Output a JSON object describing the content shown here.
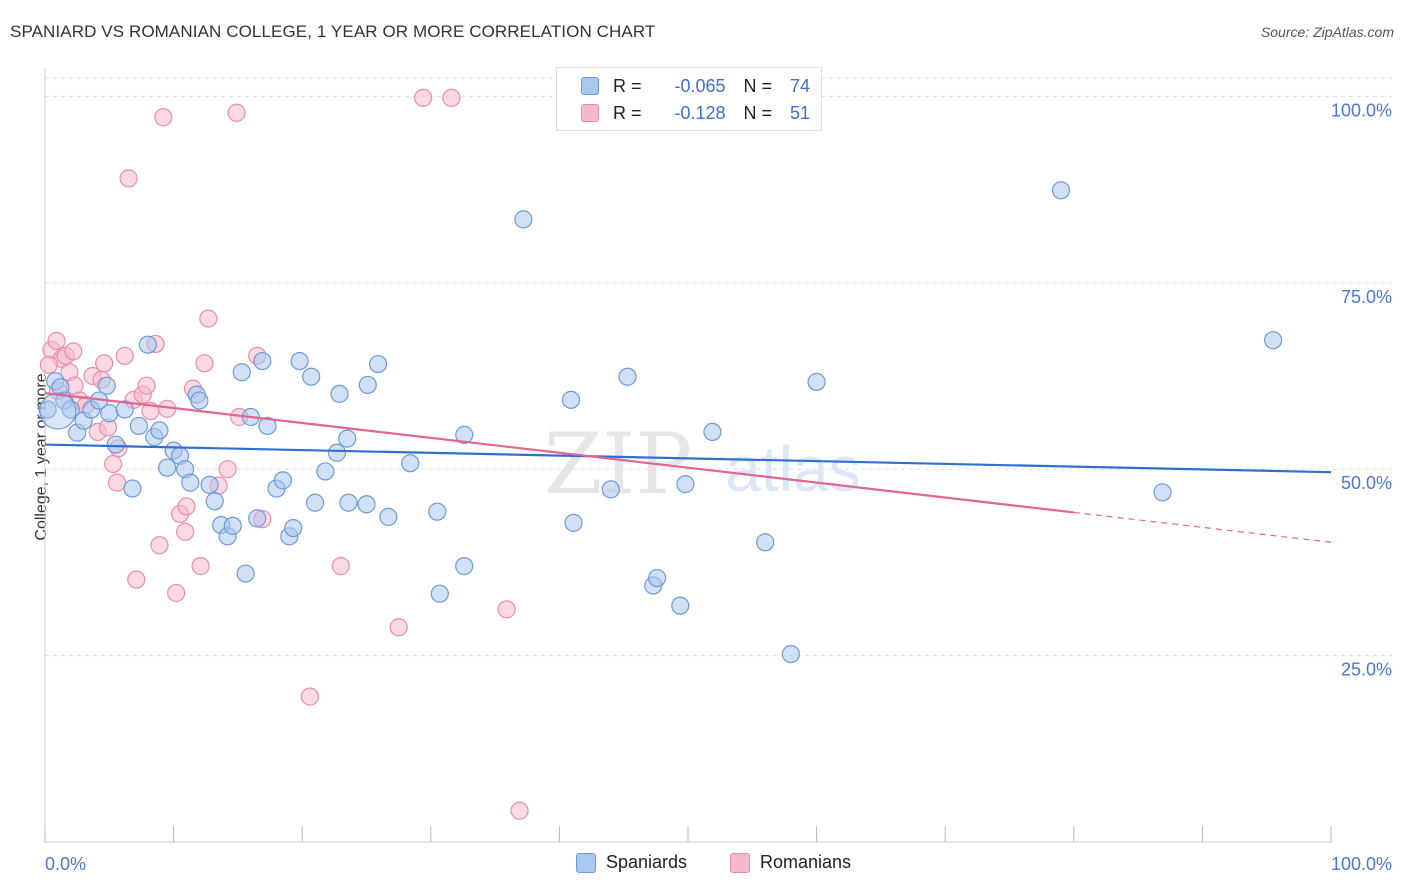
{
  "title": "SPANIARD VS ROMANIAN COLLEGE, 1 YEAR OR MORE CORRELATION CHART",
  "source": "Source: ZipAtlas.com",
  "watermark": {
    "zip": "ZIP",
    "atlas": "atlas"
  },
  "legend_top": {
    "r_label": "R =",
    "n_label": "N =",
    "rows": [
      {
        "r": "-0.065",
        "n": "74"
      },
      {
        "r": "-0.128",
        "n": "51"
      }
    ]
  },
  "chart_data": {
    "type": "scatter",
    "title": "SPANIARD VS ROMANIAN COLLEGE, 1 YEAR OR MORE CORRELATION CHART",
    "xlabel": "",
    "ylabel": "College, 1 year or more",
    "xlim": [
      0,
      100
    ],
    "ylim": [
      0,
      103
    ],
    "x_tick_labels": [
      "0.0%",
      "100.0%"
    ],
    "y_ticks": [
      25,
      50,
      75,
      100
    ],
    "y_tick_labels": [
      "25.0%",
      "50.0%",
      "75.0%",
      "100.0%"
    ],
    "grid": true,
    "legend_position": "bottom-center",
    "colors": {
      "spaniards_fill": "#aac8ef",
      "spaniards_stroke": "#6f9ad8",
      "spaniards_line": "#2f6fd0",
      "romanians_fill": "#f6b9cc",
      "romanians_stroke": "#ea8eab",
      "romanians_line": "#e26593",
      "grid": "#dddddd",
      "tick_label": "#4a78d2"
    },
    "series": [
      {
        "name": "Spaniards",
        "r": -0.065,
        "n": 74,
        "trend": {
          "x": [
            0,
            100
          ],
          "y": [
            53.3,
            49.6
          ]
        },
        "points": [
          [
            0.2,
            58.0
          ],
          [
            0.8,
            61.8
          ],
          [
            1.2,
            61.0
          ],
          [
            1.5,
            59.2
          ],
          [
            2.0,
            58.0
          ],
          [
            2.5,
            54.9
          ],
          [
            3.0,
            56.5
          ],
          [
            3.6,
            58.0
          ],
          [
            4.2,
            59.2
          ],
          [
            4.8,
            61.2
          ],
          [
            5.0,
            57.5
          ],
          [
            5.5,
            53.3
          ],
          [
            6.2,
            58.0
          ],
          [
            6.8,
            47.4
          ],
          [
            7.3,
            55.8
          ],
          [
            8.0,
            66.7
          ],
          [
            8.5,
            54.3
          ],
          [
            8.9,
            55.2
          ],
          [
            9.5,
            50.2
          ],
          [
            10.0,
            52.5
          ],
          [
            10.5,
            51.8
          ],
          [
            10.9,
            50.0
          ],
          [
            11.3,
            48.2
          ],
          [
            11.8,
            60.0
          ],
          [
            12.0,
            59.2
          ],
          [
            12.8,
            47.9
          ],
          [
            13.2,
            45.7
          ],
          [
            13.7,
            42.5
          ],
          [
            14.2,
            41.0
          ],
          [
            14.6,
            42.4
          ],
          [
            15.3,
            63.0
          ],
          [
            15.6,
            36.0
          ],
          [
            16.0,
            57.0
          ],
          [
            16.5,
            43.4
          ],
          [
            16.9,
            64.5
          ],
          [
            17.3,
            55.8
          ],
          [
            18.0,
            47.4
          ],
          [
            18.5,
            48.5
          ],
          [
            19.0,
            41.0
          ],
          [
            19.3,
            42.1
          ],
          [
            19.8,
            64.5
          ],
          [
            20.7,
            62.4
          ],
          [
            21.0,
            45.5
          ],
          [
            21.8,
            49.7
          ],
          [
            22.7,
            52.2
          ],
          [
            22.9,
            60.1
          ],
          [
            23.5,
            54.1
          ],
          [
            23.6,
            45.5
          ],
          [
            25.0,
            45.3
          ],
          [
            25.1,
            61.3
          ],
          [
            25.9,
            64.1
          ],
          [
            26.7,
            43.6
          ],
          [
            28.4,
            50.8
          ],
          [
            30.5,
            44.3
          ],
          [
            30.7,
            33.3
          ],
          [
            32.6,
            54.6
          ],
          [
            32.6,
            37.0
          ],
          [
            37.2,
            83.5
          ],
          [
            40.9,
            59.3
          ],
          [
            41.1,
            42.8
          ],
          [
            44.0,
            47.3
          ],
          [
            45.3,
            62.4
          ],
          [
            47.3,
            34.4
          ],
          [
            47.6,
            35.4
          ],
          [
            49.4,
            31.7
          ],
          [
            49.8,
            48.0
          ],
          [
            51.9,
            55.0
          ],
          [
            56.0,
            40.2
          ],
          [
            58.0,
            25.2
          ],
          [
            60.0,
            61.7
          ],
          [
            79.0,
            87.4
          ],
          [
            86.9,
            46.9
          ],
          [
            95.5,
            67.3
          ],
          [
            1.0,
            57.8
          ]
        ]
      },
      {
        "name": "Romanians",
        "r": -0.128,
        "n": 51,
        "trend": {
          "x": [
            0,
            80
          ],
          "y": [
            60.2,
            44.2
          ]
        },
        "dash": {
          "x": [
            80,
            100
          ],
          "y": [
            44.2,
            40.2
          ]
        },
        "points": [
          [
            0.5,
            66.0
          ],
          [
            0.9,
            67.2
          ],
          [
            1.3,
            64.8
          ],
          [
            1.6,
            65.2
          ],
          [
            1.9,
            63.0
          ],
          [
            2.3,
            61.2
          ],
          [
            2.7,
            59.2
          ],
          [
            3.2,
            58.6
          ],
          [
            3.7,
            62.5
          ],
          [
            4.1,
            55.0
          ],
          [
            4.6,
            64.2
          ],
          [
            4.9,
            55.6
          ],
          [
            5.3,
            50.7
          ],
          [
            5.7,
            52.8
          ],
          [
            6.2,
            65.2
          ],
          [
            6.5,
            89.0
          ],
          [
            6.9,
            59.3
          ],
          [
            7.1,
            35.2
          ],
          [
            7.6,
            60.0
          ],
          [
            8.2,
            57.8
          ],
          [
            8.6,
            66.8
          ],
          [
            8.9,
            39.8
          ],
          [
            9.2,
            97.2
          ],
          [
            10.2,
            33.4
          ],
          [
            10.5,
            44.0
          ],
          [
            10.9,
            41.6
          ],
          [
            11.5,
            60.8
          ],
          [
            12.1,
            37.0
          ],
          [
            12.4,
            64.2
          ],
          [
            12.7,
            70.2
          ],
          [
            13.5,
            47.8
          ],
          [
            14.2,
            50.0
          ],
          [
            14.9,
            97.8
          ],
          [
            15.1,
            57.0
          ],
          [
            16.5,
            65.2
          ],
          [
            16.9,
            43.3
          ],
          [
            20.6,
            19.5
          ],
          [
            23.0,
            37.0
          ],
          [
            27.5,
            28.8
          ],
          [
            29.4,
            99.8
          ],
          [
            31.6,
            99.8
          ],
          [
            35.9,
            31.2
          ],
          [
            36.9,
            4.2
          ],
          [
            1.0,
            60.5
          ],
          [
            0.3,
            64.0
          ],
          [
            2.2,
            65.8
          ],
          [
            5.6,
            48.2
          ],
          [
            4.4,
            62.0
          ],
          [
            7.9,
            61.2
          ],
          [
            9.5,
            58.1
          ],
          [
            11.0,
            45.0
          ]
        ]
      }
    ]
  },
  "legend_bottom": {
    "items": [
      "Spaniards",
      "Romanians"
    ]
  }
}
